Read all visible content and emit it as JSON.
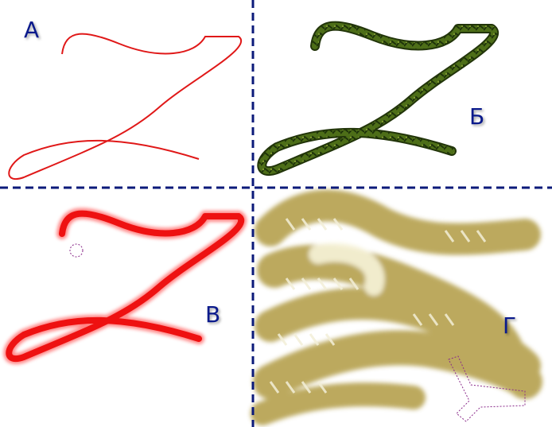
{
  "quadrants": [
    {
      "label": "А",
      "style": "thin-red-stroke",
      "color": "#e01818"
    },
    {
      "label": "Б",
      "style": "textured-green-stroke",
      "color": "#3c5a12"
    },
    {
      "label": "В",
      "style": "soft-red-brush",
      "color": "#ee1111"
    },
    {
      "label": "Г",
      "style": "scattered-olive-brush",
      "color": "#b5a04e"
    }
  ],
  "divider_color": "#0b1a7a",
  "icons": {
    "brush-cursor": "circle-outline",
    "brush-shape": "y-shape-outline"
  }
}
